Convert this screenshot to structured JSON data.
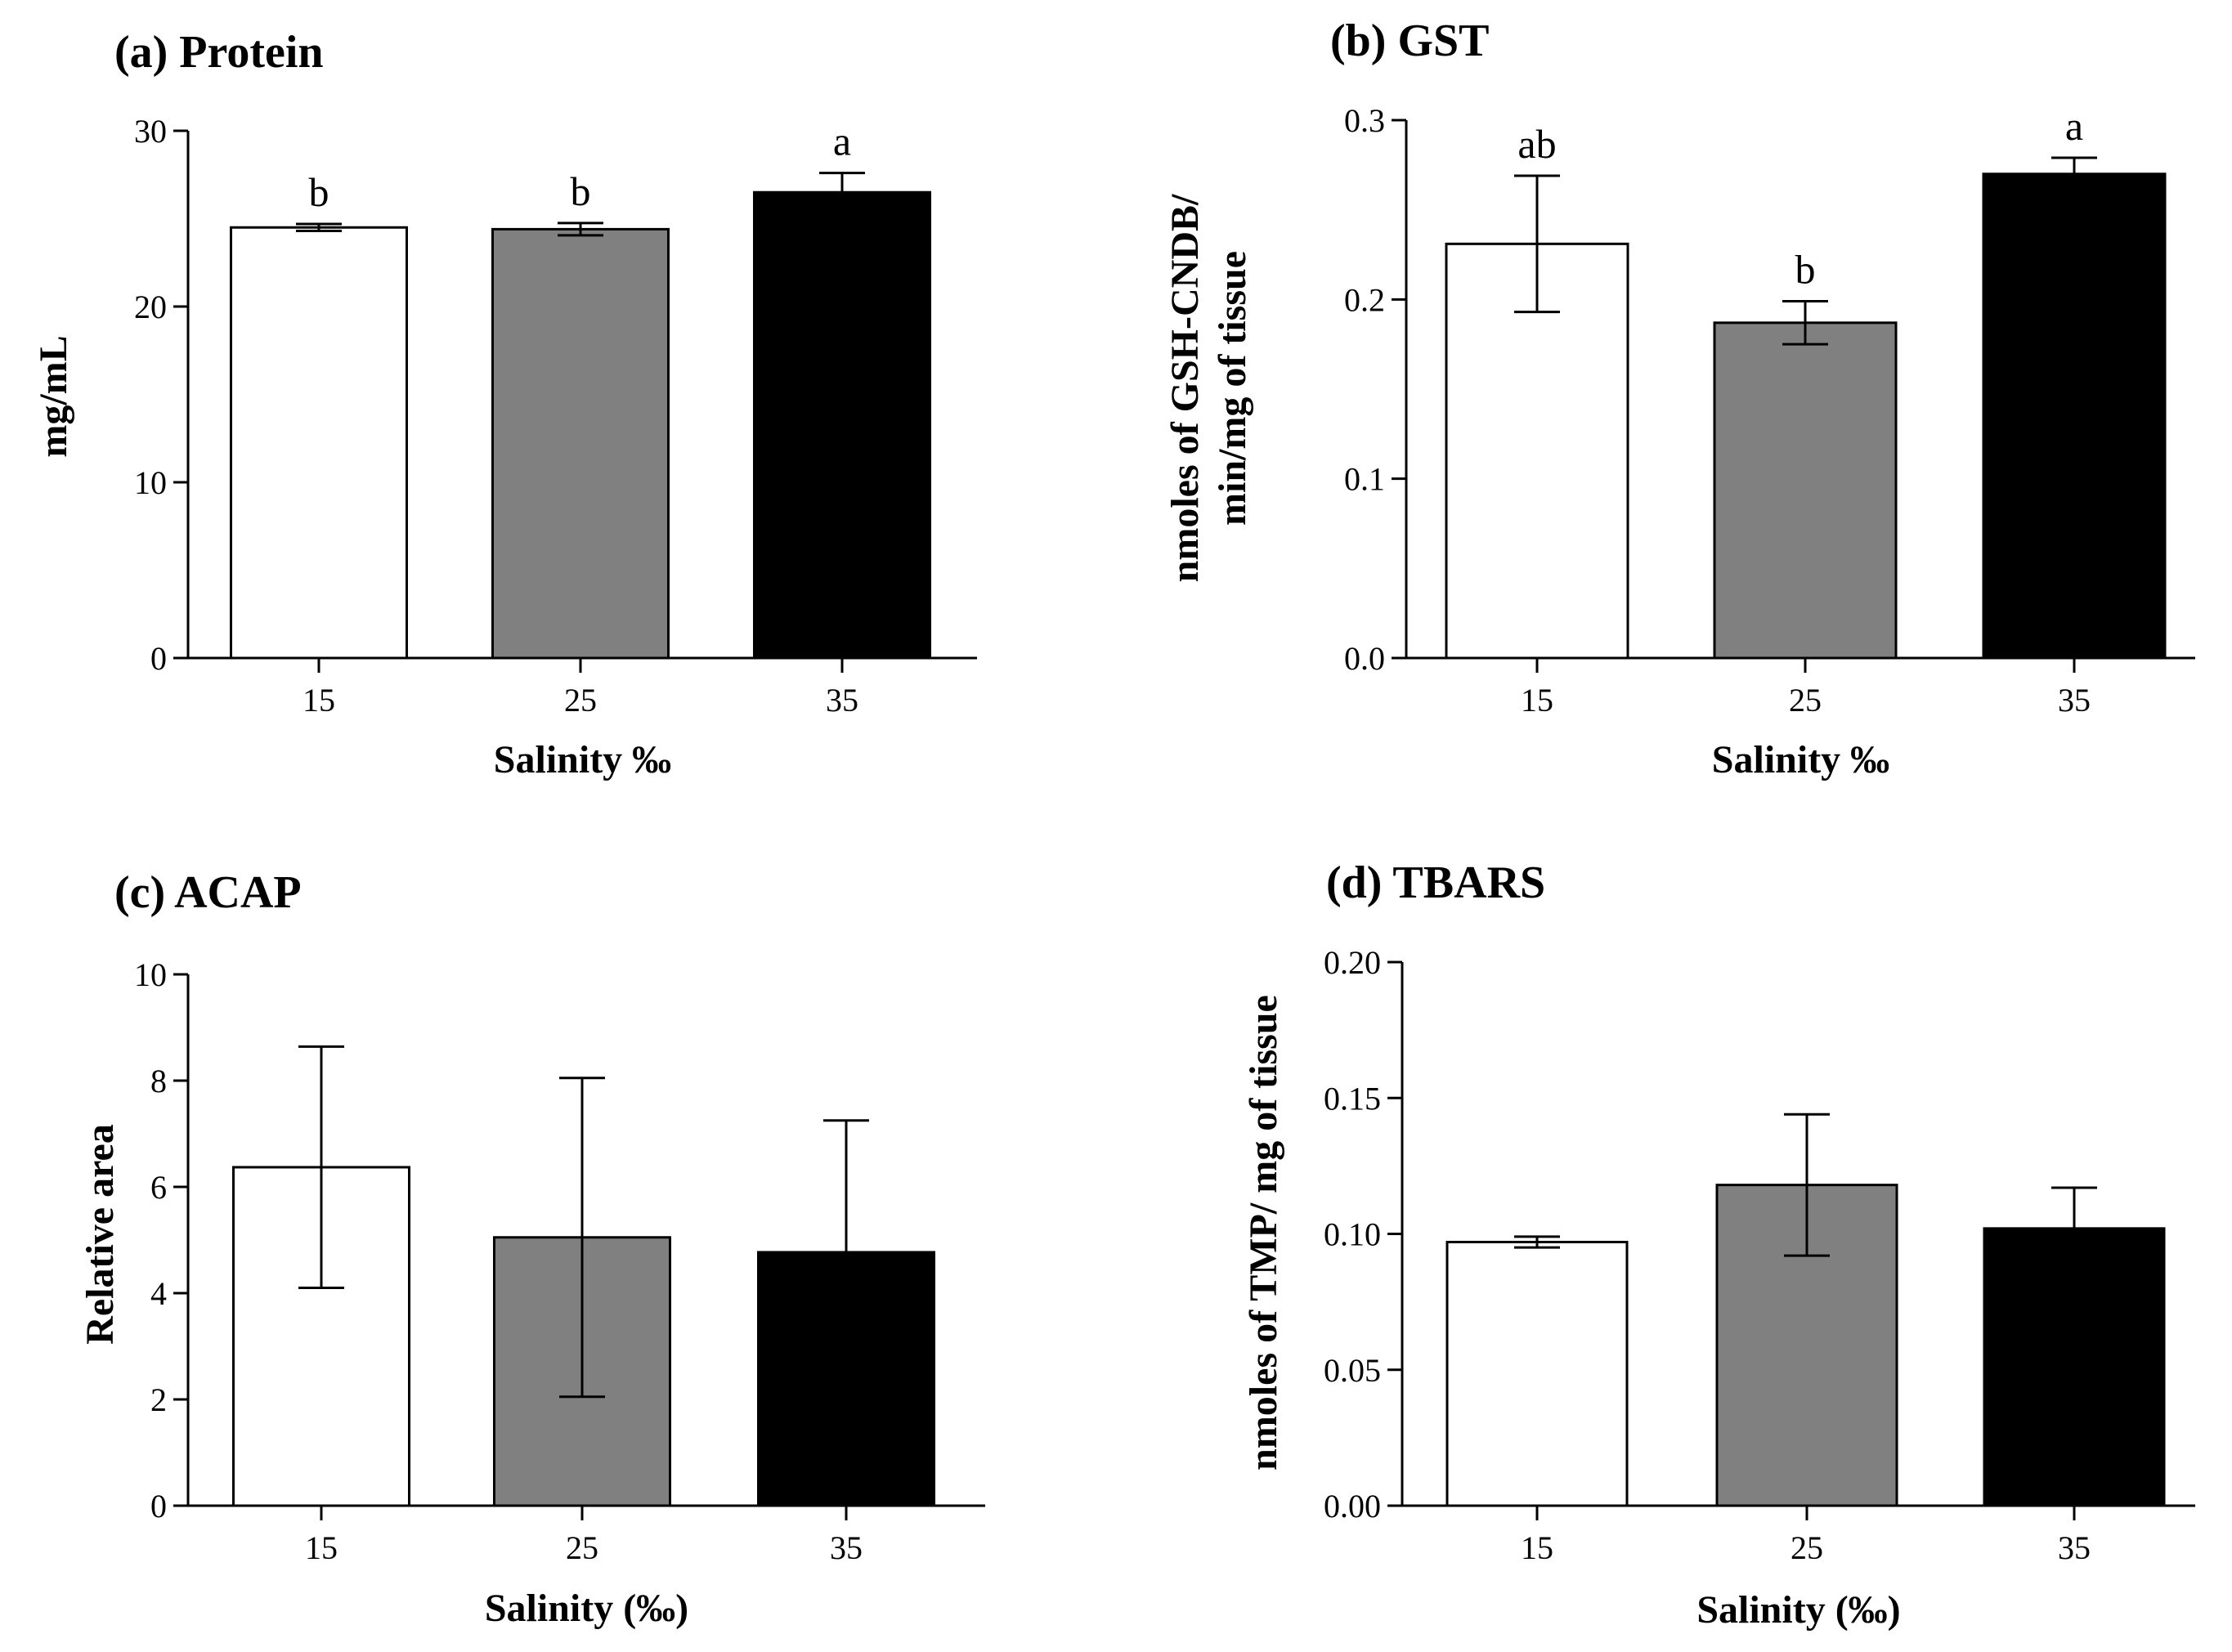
{
  "chart_data": [
    {
      "id": "a",
      "type": "bar",
      "title": "(a) Protein",
      "xlabel": "Salinity ‰",
      "ylabel": "mg/mL",
      "categories": [
        "15",
        "25",
        "35"
      ],
      "values": [
        24.5,
        24.4,
        26.5
      ],
      "errors": [
        0.2,
        0.35,
        1.1
      ],
      "significance": [
        "b",
        "b",
        "a"
      ],
      "ylim": [
        0,
        30
      ],
      "yticks": [
        0,
        10,
        20,
        30
      ],
      "ytick_labels": [
        "0",
        "10",
        "20",
        "30"
      ],
      "bar_colors": [
        "#ffffff",
        "#808080",
        "#000000"
      ],
      "grid": false
    },
    {
      "id": "b",
      "type": "bar",
      "title": "(b) GST",
      "xlabel": "Salinity ‰",
      "ylabel": [
        "nmoles of GSH-CNDB/",
        "min/mg of tissue"
      ],
      "categories": [
        "15",
        "25",
        "35"
      ],
      "values": [
        0.231,
        0.187,
        0.27
      ],
      "errors": [
        0.038,
        0.012,
        0.009
      ],
      "significance": [
        "ab",
        "b",
        "a"
      ],
      "ylim": [
        0,
        0.3
      ],
      "yticks": [
        0,
        0.1,
        0.2,
        0.3
      ],
      "ytick_labels": [
        "0.0",
        "0.1",
        "0.2",
        "0.3"
      ],
      "bar_colors": [
        "#ffffff",
        "#808080",
        "#000000"
      ],
      "grid": false
    },
    {
      "id": "c",
      "type": "bar",
      "title": "(c) ACAP",
      "xlabel": "Salinity (‰)",
      "ylabel": "Relative area",
      "categories": [
        "15",
        "25",
        "35"
      ],
      "values": [
        6.37,
        5.05,
        4.77
      ],
      "errors": [
        2.27,
        3.0,
        2.48
      ],
      "significance": [
        "",
        "",
        ""
      ],
      "ylim": [
        0,
        10
      ],
      "yticks": [
        0,
        2,
        4,
        6,
        8,
        10
      ],
      "ytick_labels": [
        "0",
        "2",
        "4",
        "6",
        "8",
        "10"
      ],
      "bar_colors": [
        "#ffffff",
        "#808080",
        "#000000"
      ],
      "grid": false
    },
    {
      "id": "d",
      "type": "bar",
      "title": "(d) TBARS",
      "xlabel": "Salinity (‰)",
      "ylabel": "nmoles of TMP/ mg of tissue",
      "categories": [
        "15",
        "25",
        "35"
      ],
      "values": [
        0.097,
        0.118,
        0.102
      ],
      "errors": [
        0.002,
        0.026,
        0.015
      ],
      "significance": [
        "",
        "",
        ""
      ],
      "ylim": [
        0,
        0.2
      ],
      "yticks": [
        0,
        0.05,
        0.1,
        0.15,
        0.2
      ],
      "ytick_labels": [
        "0.00",
        "0.05",
        "0.10",
        "0.15",
        "0.20"
      ],
      "bar_colors": [
        "#ffffff",
        "#808080",
        "#000000"
      ],
      "grid": false
    }
  ]
}
